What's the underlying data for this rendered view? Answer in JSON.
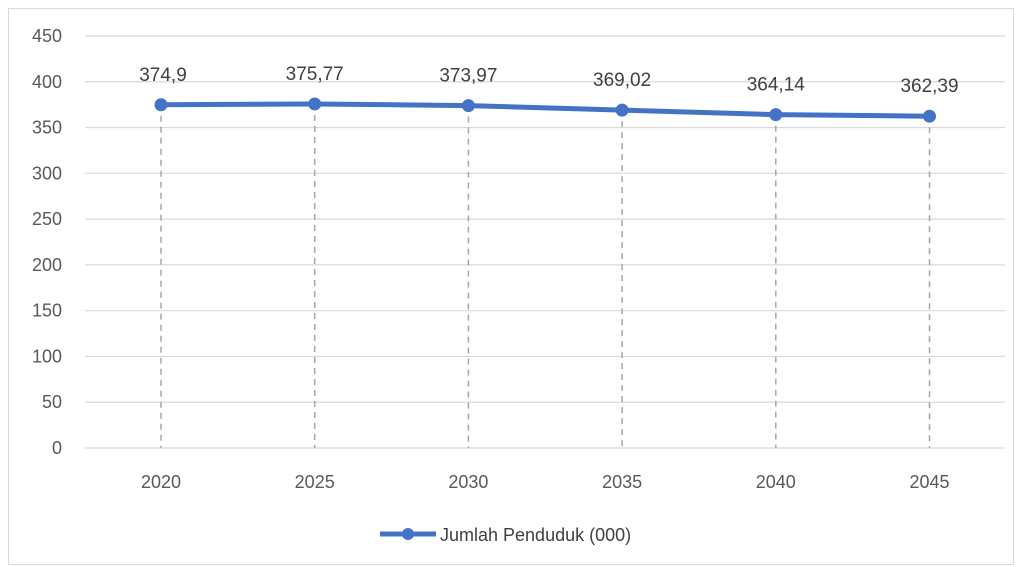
{
  "chart_data": {
    "type": "line",
    "title": "",
    "xlabel": "",
    "ylabel": "",
    "categories": [
      "2020",
      "2025",
      "2030",
      "2035",
      "2040",
      "2045"
    ],
    "series": [
      {
        "name": "Jumlah Penduduk (000)",
        "values": [
          374.9,
          375.77,
          373.97,
          369.02,
          364.14,
          362.39
        ],
        "labels": [
          "374,9",
          "375,77",
          "373,97",
          "369,02",
          "364,14",
          "362,39"
        ],
        "color": "#4472c4"
      }
    ],
    "ylim": [
      0,
      450
    ],
    "yticks": [
      0,
      50,
      100,
      150,
      200,
      250,
      300,
      350,
      400,
      450
    ],
    "grid": true,
    "drop_lines": true,
    "legend_position": "bottom"
  }
}
